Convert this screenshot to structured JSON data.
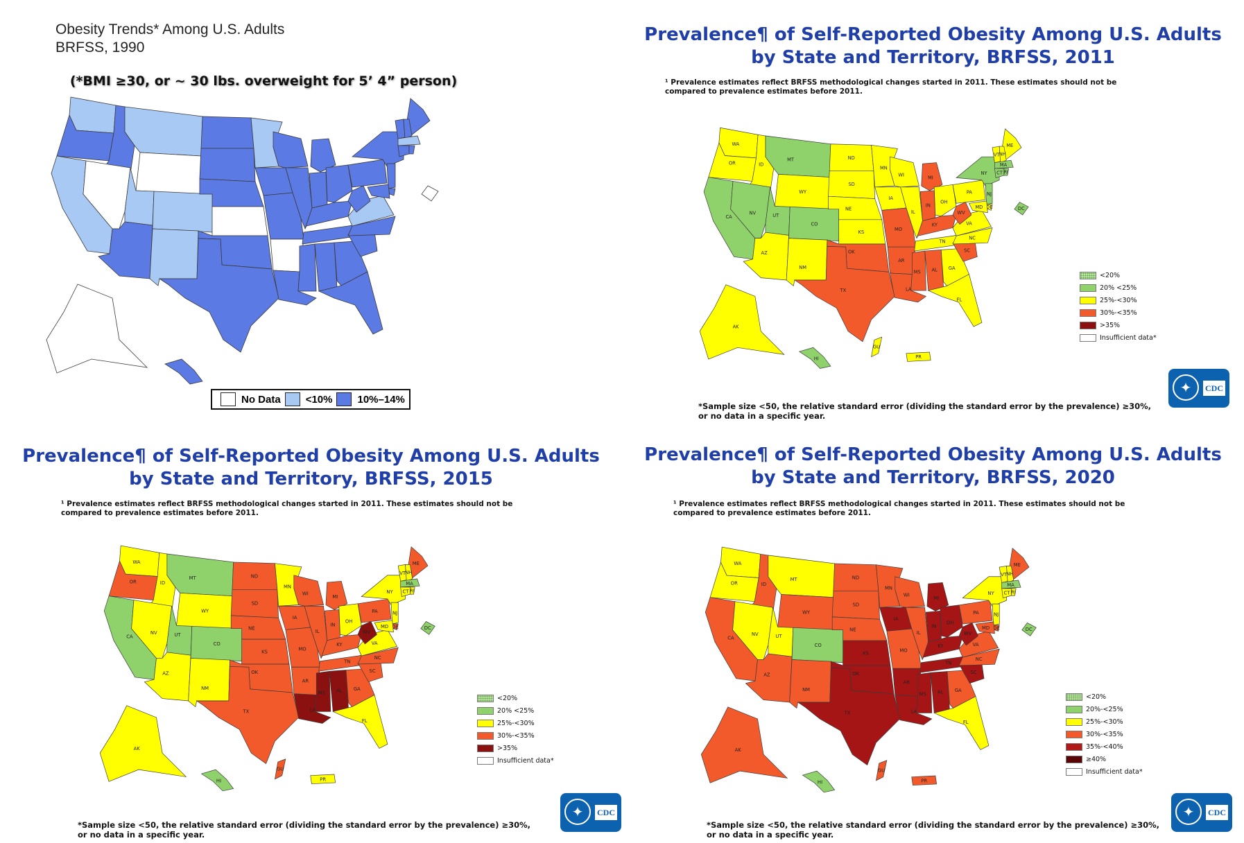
{
  "p1990": {
    "title_line1": "Obesity Trends* Among U.S. Adults",
    "title_line2": "BRFSS, 1990",
    "subtitle": "(*BMI ≥30, or ~ 30 lbs. overweight for 5’ 4” person)",
    "legend": [
      {
        "label": "No Data",
        "color": "#ffffff"
      },
      {
        "label": "<10%",
        "color": "#a9c9f5"
      },
      {
        "label": "10%–14%",
        "color": "#5b7ae3"
      }
    ]
  },
  "p2011": {
    "title_line1": "Prevalence¶ of Self-Reported Obesity Among U.S. Adults",
    "title_line2": "by State and Territory, BRFSS, 2011"
  },
  "p2015": {
    "title_line1": "Prevalence¶ of Self-Reported Obesity Among U.S. Adults",
    "title_line2": "by State and Territory, BRFSS, 2015"
  },
  "p2020": {
    "title_line1": "Prevalence¶ of Self-Reported Obesity Among U.S. Adults",
    "title_line2": "by State and Territory, BRFSS, 2020"
  },
  "note_line1": "¹ Prevalence estimates reflect BRFSS methodological changes started in 2011. These estimates should not be",
  "note_line2": "compared to prevalence estimates before 2011.",
  "sample_line1": "*Sample size <50, the relative standard error (dividing the standard error by the prevalence) ≥30%,",
  "sample_line2": "or no data in a specific year.",
  "legend_5": [
    {
      "label": "<20%",
      "color": "dotted-green"
    },
    {
      "label": "20% <25%",
      "color": "#8fd16b"
    },
    {
      "label": "25%-<30%",
      "color": "#ffff00"
    },
    {
      "label": "30%-<35%",
      "color": "#f2592b"
    },
    {
      "label": ">35%",
      "color": "#8b1010"
    },
    {
      "label": "Insufficient data*",
      "color": "#ffffff"
    }
  ],
  "legend_6": [
    {
      "label": "<20%",
      "color": "dotted-green"
    },
    {
      "label": "20%-<25%",
      "color": "#8fd16b"
    },
    {
      "label": "25%-<30%",
      "color": "#ffff00"
    },
    {
      "label": "30%-<35%",
      "color": "#f2592b"
    },
    {
      "label": "35%-<40%",
      "color": "#b01a18"
    },
    {
      "label": "≥40%",
      "color": "#5a0505"
    },
    {
      "label": "Insufficient data*",
      "color": "#ffffff"
    }
  ],
  "cdc_logo_text": "CDC",
  "state_names": [
    "WA",
    "OR",
    "CA",
    "ID",
    "NV",
    "MT",
    "WY",
    "UT",
    "CO",
    "AZ",
    "NM",
    "ND",
    "SD",
    "NE",
    "KS",
    "OK",
    "TX",
    "MN",
    "IA",
    "MO",
    "AR",
    "LA",
    "WI",
    "IL",
    "MI",
    "IN",
    "OH",
    "KY",
    "TN",
    "MS",
    "AL",
    "GA",
    "FL",
    "SC",
    "NC",
    "VA",
    "WV",
    "PA",
    "NY",
    "ME",
    "VT",
    "NH",
    "MA",
    "CT",
    "RI",
    "NJ",
    "DE",
    "MD",
    "DC",
    "AK",
    "HI",
    "GU",
    "PR"
  ],
  "map_data": {
    "y1990": {
      "WA": "lt10",
      "OR": "t10",
      "CA": "lt10",
      "ID": "t10",
      "NV": "nd",
      "MT": "lt10",
      "WY": "nd",
      "UT": "lt10",
      "CO": "lt10",
      "AZ": "t10",
      "NM": "lt10",
      "ND": "t10",
      "SD": "t10",
      "NE": "t10",
      "KS": "nd",
      "OK": "t10",
      "TX": "t10",
      "MN": "lt10",
      "IA": "t10",
      "MO": "t10",
      "AR": "nd",
      "LA": "t10",
      "WI": "t10",
      "IL": "t10",
      "MI": "t10",
      "IN": "t10",
      "OH": "t10",
      "KY": "t10",
      "TN": "t10",
      "MS": "t10",
      "AL": "t10",
      "GA": "t10",
      "FL": "t10",
      "SC": "t10",
      "NC": "t10",
      "VA": "lt10",
      "WV": "t10",
      "PA": "t10",
      "NY": "t10",
      "ME": "t10",
      "VT": "t10",
      "NH": "t10",
      "MA": "lt10",
      "CT": "t10",
      "RI": "t10",
      "NJ": "t10",
      "DE": "t10",
      "MD": "t10",
      "DC": "nd",
      "AK": "nd",
      "HI": "t10",
      "GU": "none",
      "PR": "none"
    },
    "y2011": {
      "WA": "25",
      "OR": "25",
      "CA": "20",
      "ID": "25",
      "NV": "20",
      "MT": "20",
      "WY": "25",
      "UT": "20",
      "CO": "20",
      "AZ": "25",
      "NM": "25",
      "ND": "25",
      "SD": "25",
      "NE": "25",
      "KS": "25",
      "OK": "30",
      "TX": "30",
      "MN": "25",
      "IA": "25",
      "MO": "30",
      "AR": "30",
      "LA": "30",
      "WI": "25",
      "IL": "25",
      "MI": "30",
      "IN": "30",
      "OH": "25",
      "KY": "30",
      "TN": "25",
      "MS": "30",
      "AL": "30",
      "GA": "25",
      "FL": "25",
      "SC": "30",
      "NC": "25",
      "VA": "25",
      "WV": "30",
      "PA": "25",
      "NY": "20",
      "ME": "25",
      "VT": "25",
      "NH": "25",
      "MA": "20",
      "CT": "20",
      "RI": "20",
      "NJ": "20",
      "DE": "25",
      "MD": "25",
      "DC": "20",
      "AK": "25",
      "HI": "20",
      "GU": "25",
      "PR": "25"
    },
    "y2015": {
      "WA": "25",
      "OR": "30",
      "CA": "20",
      "ID": "25",
      "NV": "25",
      "MT": "20",
      "WY": "25",
      "UT": "20",
      "CO": "20",
      "AZ": "25",
      "NM": "25",
      "ND": "30",
      "SD": "30",
      "NE": "30",
      "KS": "30",
      "OK": "30",
      "TX": "30",
      "MN": "25",
      "IA": "30",
      "MO": "30",
      "AR": "30",
      "LA": "35",
      "WI": "30",
      "IL": "30",
      "MI": "30",
      "IN": "30",
      "OH": "25",
      "KY": "30",
      "TN": "30",
      "MS": "35",
      "AL": "35",
      "GA": "30",
      "FL": "25",
      "SC": "30",
      "NC": "30",
      "VA": "25",
      "WV": "35",
      "PA": "30",
      "NY": "25",
      "ME": "30",
      "VT": "25",
      "NH": "25",
      "MA": "20",
      "CT": "25",
      "RI": "25",
      "NJ": "25",
      "DE": "30",
      "MD": "25",
      "DC": "20",
      "AK": "25",
      "HI": "20",
      "GU": "30",
      "PR": "25"
    },
    "y2020": {
      "WA": "25",
      "OR": "25",
      "CA": "30",
      "ID": "30",
      "NV": "25",
      "MT": "25",
      "WY": "30",
      "UT": "25",
      "CO": "20",
      "AZ": "30",
      "NM": "30",
      "ND": "30",
      "SD": "30",
      "NE": "30",
      "KS": "35",
      "OK": "35",
      "TX": "35",
      "MN": "30",
      "IA": "35",
      "MO": "30",
      "AR": "35",
      "LA": "35",
      "WI": "30",
      "IL": "30",
      "MI": "35",
      "IN": "35",
      "OH": "35",
      "KY": "35",
      "TN": "35",
      "MS": "35",
      "AL": "35",
      "GA": "30",
      "FL": "25",
      "SC": "35",
      "NC": "30",
      "VA": "30",
      "WV": "35",
      "PA": "30",
      "NY": "25",
      "ME": "30",
      "VT": "25",
      "NH": "25",
      "MA": "20",
      "CT": "25",
      "RI": "25",
      "NJ": "25",
      "DE": "30",
      "MD": "30",
      "DC": "20",
      "AK": "30",
      "HI": "20",
      "GU": "30",
      "PR": "30"
    }
  },
  "color_scale": {
    "nd": "#ffffff",
    "lt10": "#a9c9f5",
    "t10": "#5b7ae3",
    "20": "#8fd16b",
    "25": "#ffff00",
    "30": "#f2592b",
    "35": "#8b1010",
    "none": "#ffffff"
  },
  "color_scale_2020": {
    "20": "#8fd16b",
    "25": "#ffff00",
    "30": "#f2592b",
    "35": "#a51515"
  }
}
